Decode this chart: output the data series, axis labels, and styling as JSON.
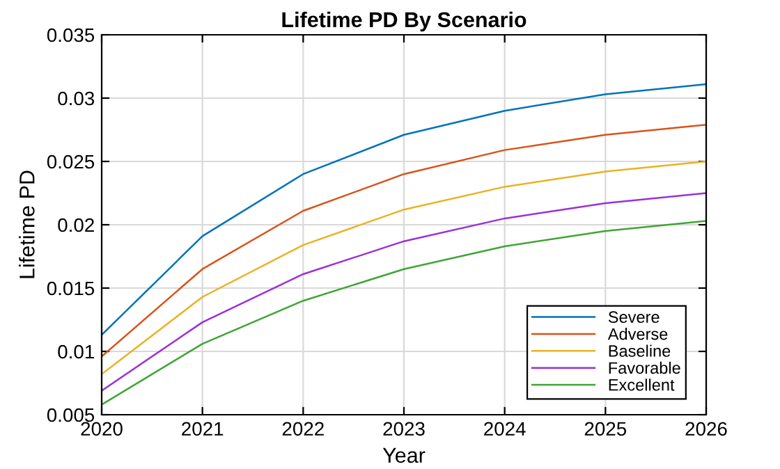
{
  "chart_data": {
    "type": "line",
    "title": "Lifetime PD By Scenario",
    "xlabel": "Year",
    "ylabel": "Lifetime PD",
    "x": [
      2020,
      2021,
      2022,
      2023,
      2024,
      2025,
      2026
    ],
    "series": [
      {
        "name": "Severe",
        "color": "#0072bd",
        "values": [
          0.0113,
          0.0191,
          0.024,
          0.0271,
          0.029,
          0.0303,
          0.0311
        ]
      },
      {
        "name": "Adverse",
        "color": "#d95319",
        "values": [
          0.0096,
          0.0165,
          0.0211,
          0.024,
          0.0259,
          0.0271,
          0.0279
        ]
      },
      {
        "name": "Baseline",
        "color": "#edb120",
        "values": [
          0.0082,
          0.0143,
          0.0184,
          0.0212,
          0.023,
          0.0242,
          0.025
        ]
      },
      {
        "name": "Favorable",
        "color": "#9b30d9",
        "values": [
          0.0069,
          0.0123,
          0.0161,
          0.0187,
          0.0205,
          0.0217,
          0.0225
        ]
      },
      {
        "name": "Excellent",
        "color": "#3fa535",
        "values": [
          0.0058,
          0.0106,
          0.014,
          0.0165,
          0.0183,
          0.0195,
          0.0203
        ]
      }
    ],
    "xlim": [
      2020,
      2026
    ],
    "xticks": [
      2020,
      2021,
      2022,
      2023,
      2024,
      2025,
      2026
    ],
    "ylim": [
      0.005,
      0.035
    ],
    "yticks": [
      0.005,
      0.01,
      0.015,
      0.02,
      0.025,
      0.03,
      0.035
    ],
    "grid": true,
    "legend": "bottom right",
    "marker": "none",
    "line_style": "solid"
  }
}
